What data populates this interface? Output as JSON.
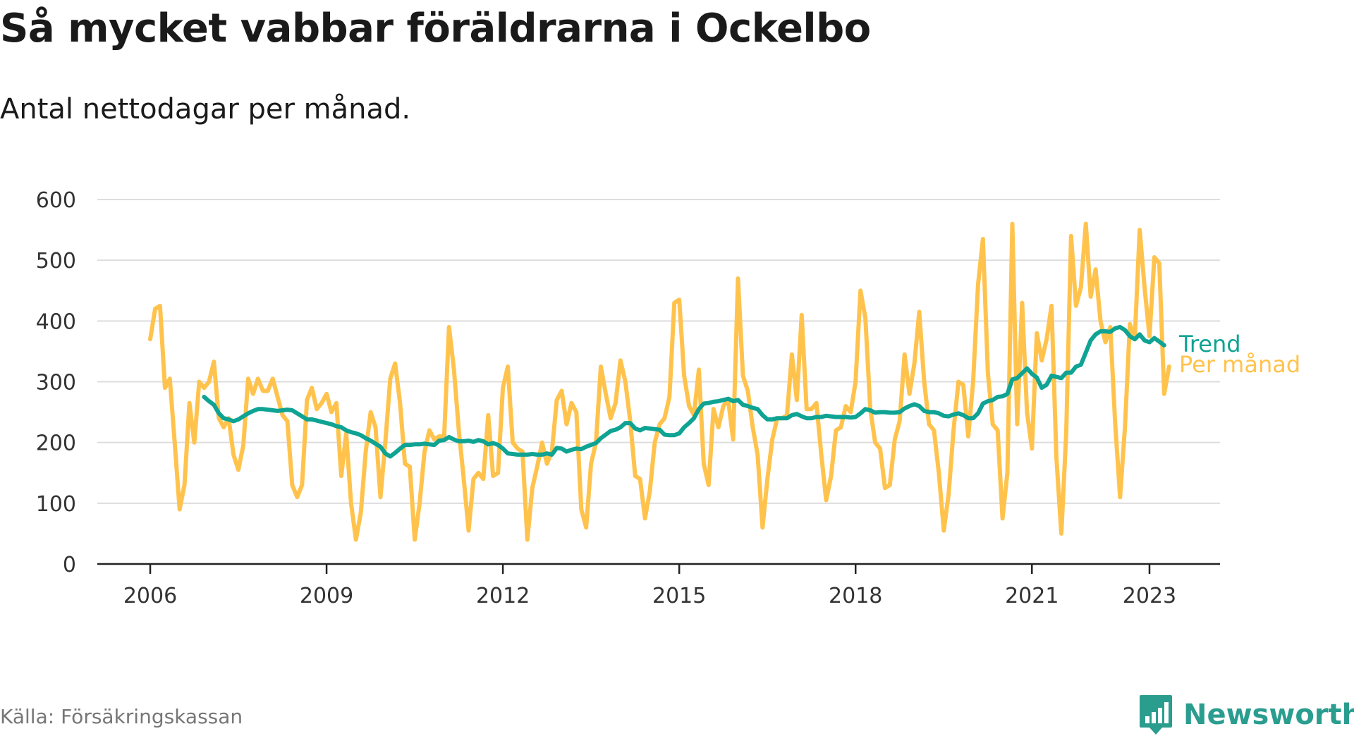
{
  "title": "Så mycket vabbar föräldrarna i Ockelbo",
  "subtitle": "Antal nettodagar per månad.",
  "source": "Källa: Försäkringskassan",
  "brand": {
    "name": "Newsworthy",
    "icon": "newsworthy-logo-icon"
  },
  "colors": {
    "monthly": "#ffc34d",
    "trend": "#0fa393",
    "grid": "#dddddd",
    "axis": "#222222"
  },
  "chart_data": {
    "type": "line",
    "title": "Så mycket vabbar föräldrarna i Ockelbo",
    "ylabel": "",
    "xlabel": "",
    "ylim": [
      0,
      600
    ],
    "xlim": [
      2005.1,
      2024.2
    ],
    "yticks": [
      0,
      100,
      200,
      300,
      400,
      500,
      600
    ],
    "xticks": [
      {
        "value": 2006,
        "label": "2006"
      },
      {
        "value": 2009,
        "label": "2009"
      },
      {
        "value": 2012,
        "label": "2012"
      },
      {
        "value": 2015,
        "label": "2015"
      },
      {
        "value": 2018,
        "label": "2018"
      },
      {
        "value": 2021,
        "label": "2021"
      },
      {
        "value": 2023,
        "label": "2023"
      }
    ],
    "grid": true,
    "legend": "inline-right",
    "series": [
      {
        "name": "Per månad",
        "start": "2006-01",
        "frequency": "monthly",
        "values": [
          370,
          420,
          425,
          290,
          305,
          200,
          90,
          130,
          265,
          200,
          300,
          290,
          300,
          333,
          240,
          225,
          240,
          180,
          155,
          195,
          305,
          280,
          305,
          285,
          285,
          305,
          275,
          245,
          235,
          130,
          110,
          130,
          270,
          290,
          255,
          265,
          280,
          250,
          265,
          145,
          215,
          100,
          40,
          85,
          185,
          250,
          225,
          110,
          200,
          305,
          330,
          265,
          165,
          160,
          40,
          100,
          185,
          220,
          205,
          210,
          210,
          390,
          320,
          220,
          140,
          55,
          140,
          150,
          140,
          245,
          145,
          150,
          290,
          325,
          200,
          190,
          185,
          40,
          125,
          160,
          200,
          165,
          185,
          270,
          285,
          230,
          265,
          250,
          90,
          60,
          165,
          200,
          325,
          280,
          240,
          265,
          335,
          300,
          235,
          145,
          140,
          75,
          120,
          200,
          230,
          240,
          275,
          430,
          435,
          310,
          260,
          245,
          320,
          165,
          130,
          255,
          225,
          260,
          270,
          205,
          470,
          310,
          285,
          225,
          180,
          60,
          140,
          205,
          240,
          240,
          245,
          345,
          270,
          410,
          255,
          255,
          265,
          180,
          105,
          145,
          220,
          225,
          260,
          250,
          300,
          450,
          405,
          255,
          200,
          190,
          125,
          130,
          205,
          235,
          345,
          280,
          330,
          415,
          300,
          230,
          220,
          150,
          55,
          115,
          220,
          300,
          295,
          210,
          300,
          460,
          535,
          315,
          230,
          220,
          75,
          150,
          560,
          230,
          430,
          250,
          190,
          380,
          335,
          370,
          425,
          175,
          50,
          215,
          540,
          425,
          455,
          560,
          440,
          485,
          400,
          365,
          390,
          230,
          110,
          225,
          395,
          370,
          550,
          455,
          375,
          505,
          495,
          280,
          325
        ]
      },
      {
        "name": "Trend",
        "start": "2006-12",
        "frequency": "monthly",
        "values": [
          275,
          268,
          262,
          248,
          240,
          238,
          235,
          238,
          243,
          248,
          252,
          255,
          255,
          254,
          253,
          252,
          253,
          254,
          253,
          248,
          243,
          238,
          238,
          236,
          234,
          232,
          230,
          227,
          225,
          220,
          217,
          215,
          212,
          207,
          203,
          198,
          193,
          182,
          177,
          183,
          190,
          196,
          196,
          197,
          197,
          198,
          197,
          196,
          203,
          204,
          209,
          205,
          202,
          202,
          203,
          201,
          204,
          202,
          197,
          199,
          196,
          190,
          182,
          181,
          180,
          180,
          180,
          181,
          180,
          180,
          182,
          180,
          191,
          190,
          185,
          188,
          190,
          189,
          193,
          196,
          199,
          207,
          213,
          219,
          221,
          225,
          232,
          232,
          223,
          220,
          224,
          223,
          222,
          221,
          213,
          212,
          212,
          215,
          225,
          232,
          240,
          255,
          264,
          265,
          267,
          268,
          270,
          272,
          268,
          270,
          262,
          260,
          257,
          255,
          245,
          238,
          238,
          240,
          240,
          240,
          245,
          247,
          243,
          240,
          240,
          242,
          242,
          244,
          243,
          242,
          242,
          242,
          241,
          242,
          248,
          255,
          253,
          249,
          250,
          250,
          249,
          249,
          250,
          256,
          260,
          263,
          260,
          252,
          250,
          250,
          248,
          244,
          243,
          246,
          248,
          245,
          240,
          240,
          248,
          264,
          268,
          270,
          275,
          276,
          280,
          304,
          306,
          314,
          322,
          313,
          307,
          290,
          295,
          310,
          308,
          306,
          315,
          315,
          325,
          328,
          348,
          368,
          378,
          383,
          383,
          382,
          388,
          390,
          385,
          375,
          370,
          378,
          368,
          365,
          372,
          366,
          360
        ]
      }
    ]
  }
}
